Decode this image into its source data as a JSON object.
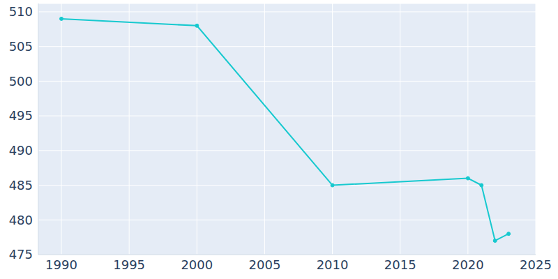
{
  "chart_data": {
    "type": "line",
    "x": [
      1990,
      2000,
      2010,
      2020,
      2021,
      2022,
      2023
    ],
    "values": [
      509,
      508,
      485,
      486,
      485,
      477,
      478
    ],
    "color": "#17c9cf",
    "marker": "circle",
    "xlim": [
      1988.3,
      2025
    ],
    "ylim": [
      475,
      511.2
    ],
    "xticks": [
      1990,
      1995,
      2000,
      2005,
      2010,
      2015,
      2020,
      2025
    ],
    "yticks": [
      475,
      480,
      485,
      490,
      495,
      500,
      505,
      510
    ],
    "grid": true
  }
}
